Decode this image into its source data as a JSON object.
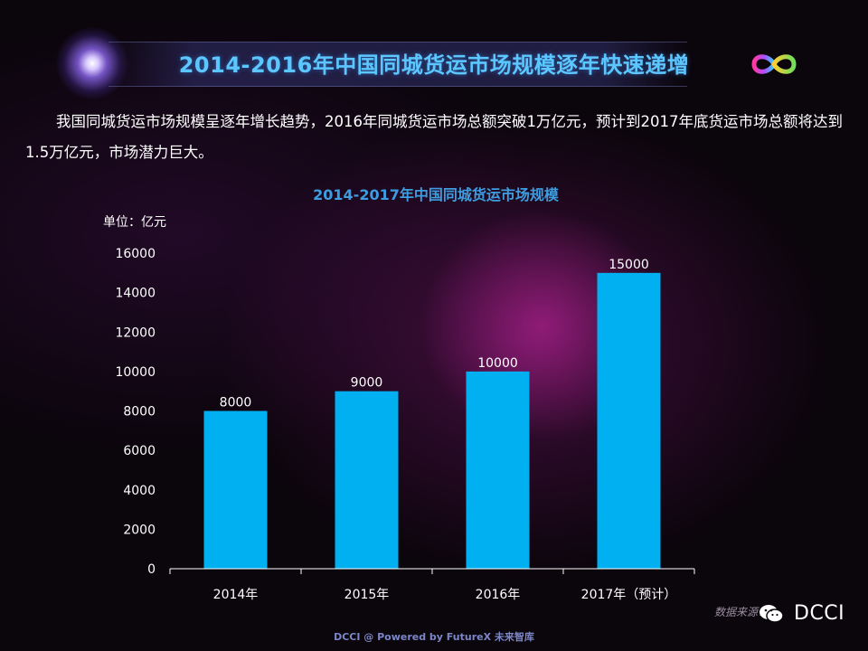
{
  "header": {
    "title": "2014-2016年中国同城货运市场规模逐年快速递增"
  },
  "intro_text": "我国同城货运市场规模呈逐年增长趋势，2016年同城货运市场总额突破1万亿元，预计到2017年底货运市场总额将达到1.5万亿元，市场潜力巨大。",
  "chart_data": {
    "type": "bar",
    "title": "2014-2017年中国同城货运市场规模",
    "unit_label": "单位：亿元",
    "categories": [
      "2014年",
      "2015年",
      "2016年",
      "2017年（预计）"
    ],
    "values": [
      8000,
      9000,
      10000,
      15000
    ],
    "ylim": [
      0,
      16000
    ],
    "yticks": [
      0,
      2000,
      4000,
      6000,
      8000,
      10000,
      12000,
      14000,
      16000
    ],
    "bar_color": "#00b0f0",
    "title_color": "#3c9ee0",
    "grid": false
  },
  "footer": {
    "source": "数据来源：",
    "brand": "DCCI",
    "powered": "DCCI @ Powered by FutureX 未来智库"
  },
  "icons": {
    "logo": "infinity-logo-icon",
    "wechat": "wechat-icon"
  }
}
